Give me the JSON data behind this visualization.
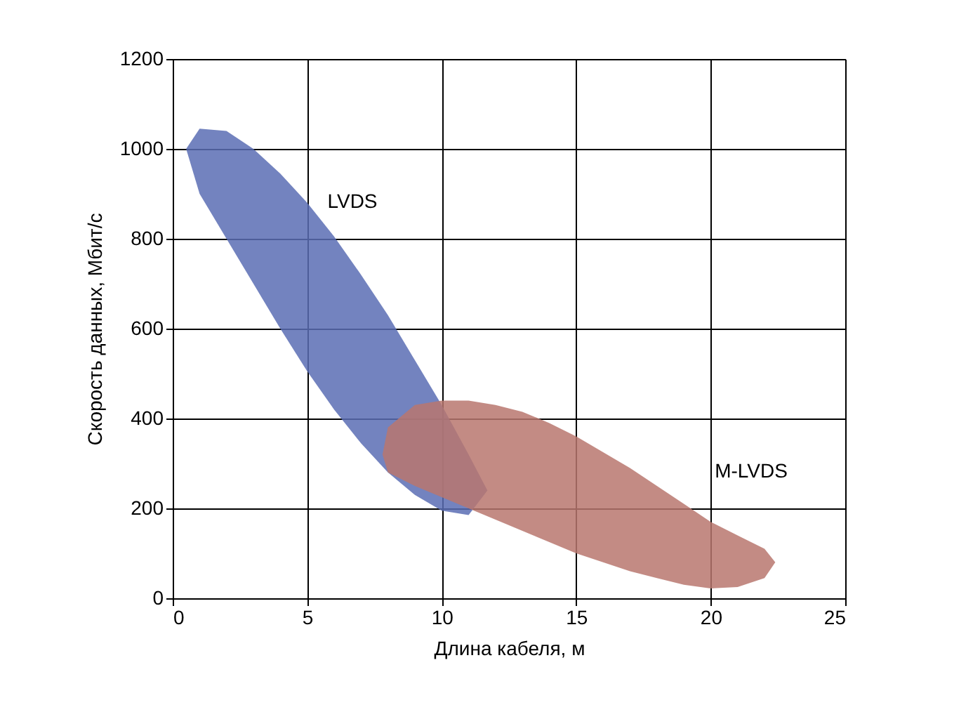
{
  "chart_data": {
    "type": "area",
    "xlabel": "Длина кабеля, м",
    "ylabel": "Скорость данных, Мбит/с",
    "xlim": [
      0,
      25
    ],
    "ylim": [
      0,
      1200
    ],
    "xticks": [
      0,
      5,
      10,
      15,
      20,
      25
    ],
    "yticks": [
      0,
      200,
      400,
      600,
      800,
      1000,
      1200
    ],
    "grid": true,
    "series": [
      {
        "name": "LVDS",
        "color": "#5b6db4",
        "x": [
          0.5,
          1,
          2,
          3,
          4,
          5,
          6,
          7,
          8,
          9,
          10,
          11,
          11.7,
          11,
          10,
          9,
          8,
          7,
          6,
          5,
          4,
          3,
          2,
          1
        ],
        "values": [
          1000,
          1045,
          1040,
          1000,
          945,
          880,
          805,
          720,
          630,
          530,
          430,
          320,
          240,
          185,
          195,
          230,
          280,
          345,
          420,
          505,
          600,
          700,
          800,
          900
        ]
      },
      {
        "name": "M-LVDS",
        "color": "#b9776e",
        "x": [
          7.8,
          8,
          9,
          10,
          11,
          12,
          13,
          14,
          15,
          16,
          17,
          18,
          19,
          20,
          21,
          22,
          22.4,
          22,
          21,
          20,
          19,
          18,
          17,
          16,
          15,
          14,
          13,
          12,
          11,
          10,
          9,
          8
        ],
        "values": [
          320,
          380,
          430,
          440,
          440,
          430,
          415,
          390,
          360,
          325,
          290,
          250,
          210,
          170,
          140,
          110,
          80,
          45,
          25,
          22,
          30,
          45,
          60,
          80,
          100,
          125,
          150,
          175,
          200,
          225,
          250,
          280
        ]
      }
    ]
  }
}
